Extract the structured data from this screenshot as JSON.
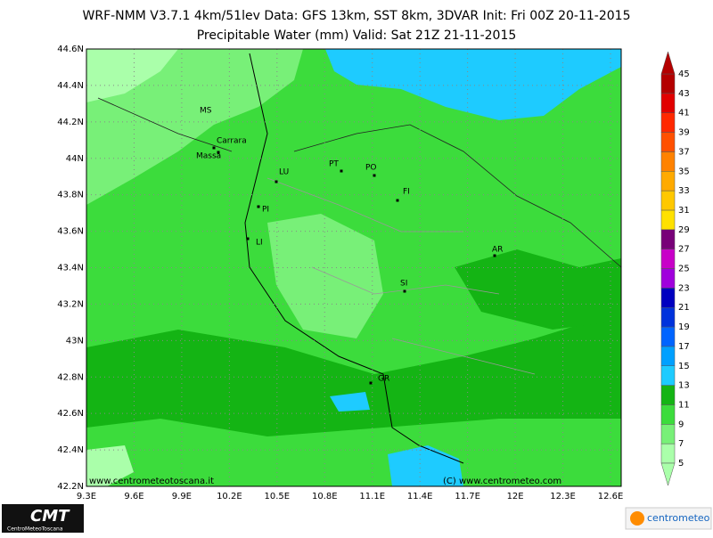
{
  "header": {
    "line1": "WRF-NMM V3.7.1 4km/51lev  Data: GFS 13km, SST 8km, 3DVAR  Init: Fri 00Z 20-11-2015",
    "line2": "Precipitable Water (mm)  Valid: Sat 21Z 21-11-2015"
  },
  "map": {
    "lat_ticks": [
      "44.6N",
      "44.4N",
      "44.2N",
      "44N",
      "43.8N",
      "43.6N",
      "43.4N",
      "43.2N",
      "43N",
      "42.8N",
      "42.6N",
      "42.4N",
      "42.2N"
    ],
    "lon_ticks": [
      "9.3E",
      "9.6E",
      "9.9E",
      "10.2E",
      "10.5E",
      "10.8E",
      "11.1E",
      "11.4E",
      "11.7E",
      "12E",
      "12.3E",
      "12.6E"
    ],
    "cities": [
      "MS",
      "Carrara",
      "Massa",
      "LU",
      "PT",
      "PO",
      "FI",
      "PI",
      "LI",
      "AR",
      "SI",
      "GR"
    ],
    "watermark_left": "www.centrometeotoscana.it",
    "watermark_right": "(C) www.centrometeo.com"
  },
  "legend": {
    "levels": [
      5,
      7,
      9,
      11,
      13,
      15,
      17,
      19,
      21,
      23,
      25,
      27,
      29,
      31,
      33,
      35,
      37,
      39,
      41,
      43,
      45
    ],
    "colors": [
      "#aaffaa",
      "#78f078",
      "#3cdc3c",
      "#14b414",
      "#1ecbff",
      "#00a0ff",
      "#0064ff",
      "#0032dc",
      "#0000c0",
      "#a000dc",
      "#c800c8",
      "#780078",
      "#ffe100",
      "#ffc800",
      "#ffaa00",
      "#ff8200",
      "#ff5000",
      "#ff2800",
      "#e10000",
      "#b40000"
    ]
  },
  "footer": {
    "logo_left": "CMT",
    "logo_left_sub": "CentroMeteoToscana",
    "logo_right": "centrometeo"
  }
}
